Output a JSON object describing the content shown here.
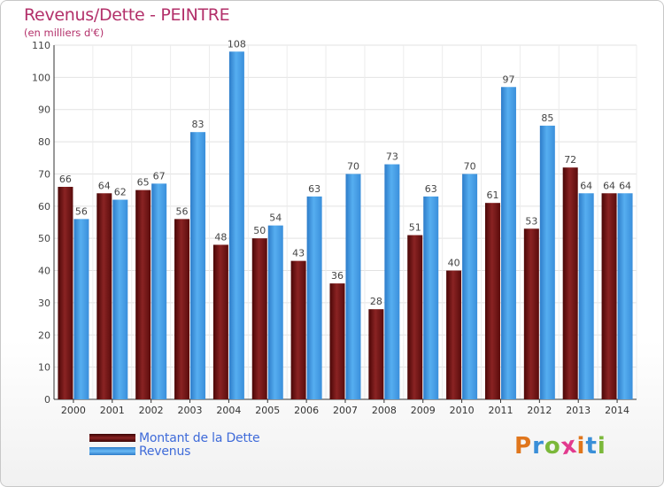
{
  "header": {
    "title": "Revenus/Dette - PEINTRE",
    "subtitle": "(en milliers d'€)"
  },
  "chart_data": {
    "type": "bar",
    "categories": [
      "2000",
      "2001",
      "2002",
      "2003",
      "2004",
      "2005",
      "2006",
      "2007",
      "2008",
      "2009",
      "2010",
      "2011",
      "2012",
      "2013",
      "2014"
    ],
    "series": [
      {
        "name": "Montant de la Dette",
        "color": "#7a1a1a",
        "values": [
          66,
          64,
          65,
          56,
          48,
          50,
          43,
          36,
          28,
          51,
          40,
          61,
          53,
          72,
          64
        ]
      },
      {
        "name": "Revenus",
        "color": "#3b8fdb",
        "values": [
          56,
          62,
          67,
          83,
          108,
          54,
          63,
          70,
          73,
          63,
          70,
          97,
          85,
          64,
          64
        ]
      }
    ],
    "ylim": [
      0,
      110
    ],
    "yticks": [
      0,
      10,
      20,
      30,
      40,
      50,
      60,
      70,
      80,
      90,
      100,
      110
    ],
    "grid": true,
    "legend_position": "bottom-left"
  },
  "legend": {
    "items": [
      {
        "label": "Montant de la Dette",
        "color": "#7a1a1a"
      },
      {
        "label": "Revenus",
        "color": "#3b8fdb"
      }
    ]
  },
  "logo": {
    "letters": [
      "P",
      "r",
      "o",
      "x",
      "i",
      "t",
      "i"
    ],
    "colors": [
      "#e0761c",
      "#3a8fd8",
      "#7bb83a",
      "#e23a8e",
      "#e0761c",
      "#3a8fd8",
      "#7bb83a"
    ]
  }
}
